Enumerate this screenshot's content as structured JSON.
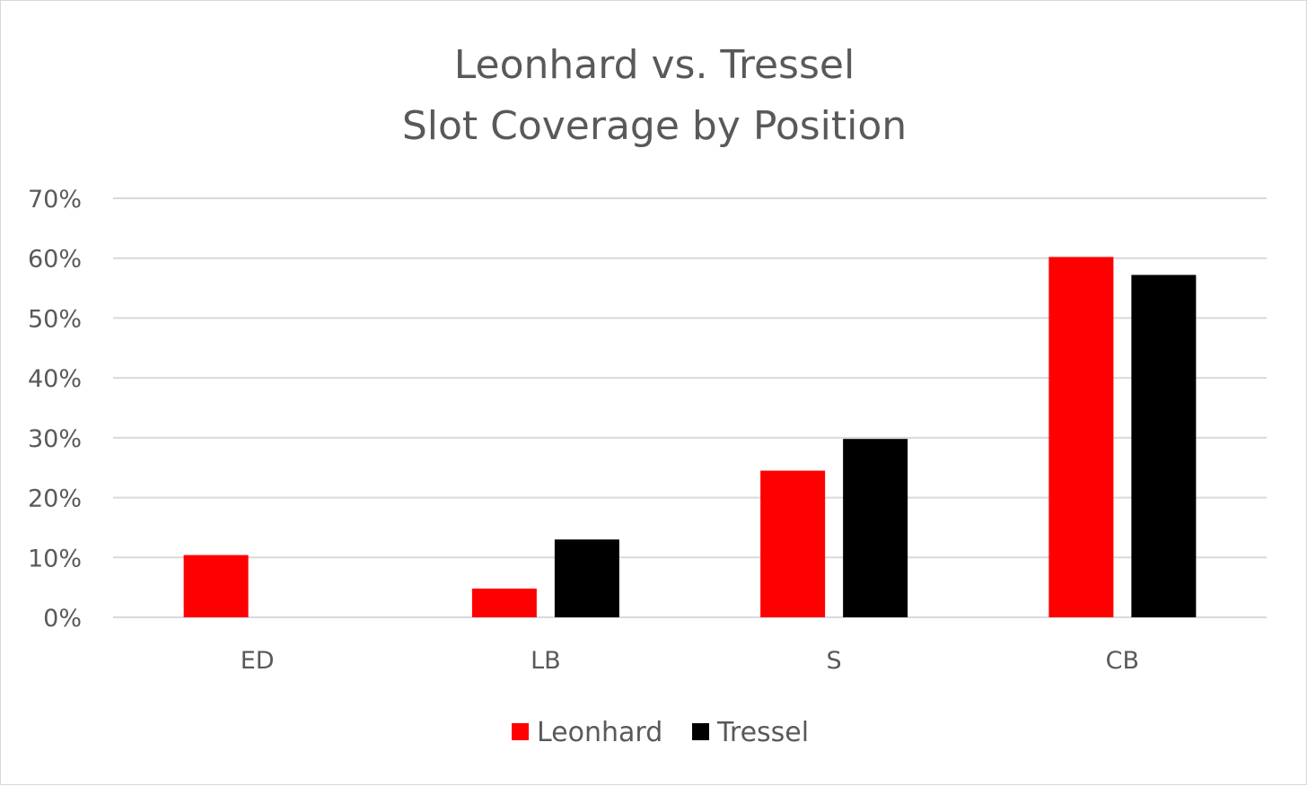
{
  "chart_data": {
    "type": "bar",
    "title_lines": [
      "Leonhard vs. Tressel",
      "Slot Coverage by Position"
    ],
    "categories": [
      "ED",
      "LB",
      "S",
      "CB"
    ],
    "series": [
      {
        "name": "Leonhard",
        "color": "#ff0000",
        "values": [
          10.4,
          4.8,
          24.5,
          60.2
        ]
      },
      {
        "name": "Tressel",
        "color": "#000000",
        "values": [
          0,
          13.0,
          29.8,
          57.2
        ]
      }
    ],
    "ylim": [
      0,
      70
    ],
    "yticks": [
      0,
      10,
      20,
      30,
      40,
      50,
      60,
      70
    ],
    "ytick_labels": [
      "0%",
      "10%",
      "20%",
      "30%",
      "40%",
      "50%",
      "60%",
      "70%"
    ],
    "grid": true,
    "legend_position": "bottom"
  }
}
